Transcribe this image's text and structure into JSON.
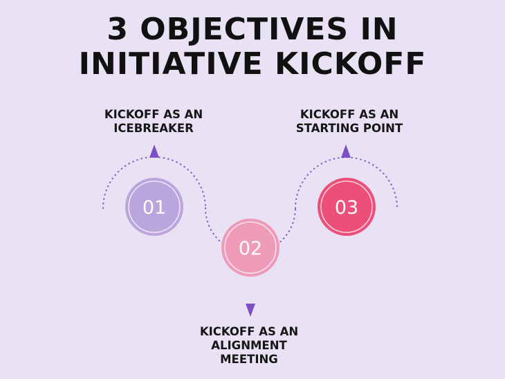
{
  "title": {
    "line1": "3 OBJECTIVES IN",
    "line2": "INITIATIVE KICKOFF"
  },
  "steps": [
    {
      "number": "01",
      "label_line1": "KICKOFF AS AN",
      "label_line2": "ICEBREAKER",
      "color": "#bba5dd"
    },
    {
      "number": "02",
      "label_line1": "KICKOFF AS AN",
      "label_line2": "ALIGNMENT",
      "label_line3": "MEETING",
      "color": "#ee9ab9"
    },
    {
      "number": "03",
      "label_line1": "KICKOFF AS AN",
      "label_line2": "STARTING POINT",
      "color": "#ec4f7a"
    }
  ],
  "colors": {
    "background": "#e9e2f4",
    "path": "#8a5cc8",
    "arrow": "#7c4fc4"
  }
}
